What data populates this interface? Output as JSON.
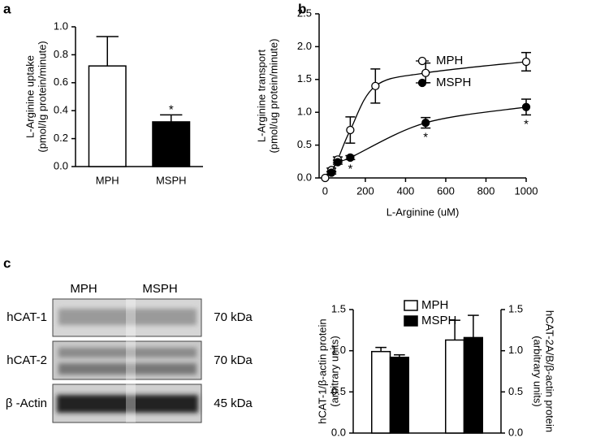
{
  "chart_data": [
    {
      "type": "bar",
      "panel": "a",
      "categories": [
        "MPH",
        "MSPH"
      ],
      "values": [
        0.72,
        0.32
      ],
      "errors": [
        0.21,
        0.05
      ],
      "colors": [
        "#ffffff",
        "#000000"
      ],
      "annotations": [
        null,
        "*"
      ],
      "ylabel": [
        "L-Arginine uptake",
        "(pmol/Ig protein/minute)"
      ],
      "ylim": [
        0,
        1
      ],
      "yticks": [
        {
          "value": 0,
          "label": "0.0"
        },
        0.2,
        0.4,
        0.6,
        0.8,
        {
          "value": 1,
          "label": "1.0"
        }
      ]
    },
    {
      "type": "line",
      "panel": "b",
      "x": [
        0,
        31.25,
        62.5,
        125,
        250,
        500,
        1000
      ],
      "xlabel": "L-Arginine (uM)",
      "ylabel": [
        "L-Arginine transport",
        "(pmol/ug protein/minute)"
      ],
      "xlim": [
        -30,
        1000
      ],
      "xticks": [
        0,
        200,
        400,
        600,
        800,
        1000
      ],
      "ylim": [
        0,
        2.5
      ],
      "yticks": [
        {
          "value": 0,
          "label": "0.0"
        },
        0.5,
        {
          "value": 1,
          "label": "1.0"
        },
        1.5,
        {
          "value": 2,
          "label": "2.0"
        },
        2.5
      ],
      "legend": "right",
      "series": [
        {
          "name": "MPH",
          "color": "#000000",
          "marker_fill": "#ffffff",
          "values": [
            0,
            0.12,
            0.28,
            0.73,
            1.4,
            1.6,
            1.77
          ],
          "errors": [
            0,
            0.03,
            0.04,
            0.2,
            0.26,
            0.15,
            0.14
          ]
        },
        {
          "name": "MSPH",
          "color": "#000000",
          "marker_fill": "#000000",
          "values": [
            null,
            0.08,
            0.24,
            0.31,
            null,
            0.84,
            1.08
          ],
          "errors": [
            null,
            0.02,
            0.03,
            0.03,
            null,
            0.08,
            0.12
          ],
          "annotations": [
            null,
            null,
            null,
            "*",
            null,
            "*",
            "*"
          ]
        }
      ]
    },
    {
      "type": "bar",
      "panel": "c",
      "categories": [
        null,
        null
      ],
      "category_axes": [
        "y",
        "y2"
      ],
      "ylabel": [
        "hCAT-1/β-actin protein",
        "(arbitrary units)"
      ],
      "y2label": [
        "hCAT-2A/B/β-actin protein",
        "(arbitrary units)"
      ],
      "ylim": [
        0,
        1.5
      ],
      "yticks": [
        {
          "value": 0,
          "label": "0.0"
        },
        0.5,
        {
          "value": 1,
          "label": "1.0"
        },
        1.5
      ],
      "y2lim": [
        0,
        1.5
      ],
      "y2ticks": [
        {
          "value": 0,
          "label": "0.0"
        },
        0.5,
        {
          "value": 1,
          "label": "1.0"
        },
        1.5
      ],
      "legend": "top",
      "series": [
        {
          "name": "MPH",
          "color": "#ffffff",
          "values": [
            0.99,
            1.13
          ],
          "errors": [
            0.05,
            0.24
          ]
        },
        {
          "name": "MSPH",
          "color": "#000000",
          "values": [
            0.92,
            1.16
          ],
          "errors": [
            0.03,
            0.27
          ]
        }
      ]
    }
  ],
  "blot": {
    "columns": [
      "MPH",
      "MSPH"
    ],
    "rows": [
      {
        "label": "hCAT-1",
        "size": "70 kDa"
      },
      {
        "label": "hCAT-2",
        "size": "70 kDa"
      },
      {
        "label": "β -Actin",
        "size": "45 kDa"
      }
    ]
  }
}
